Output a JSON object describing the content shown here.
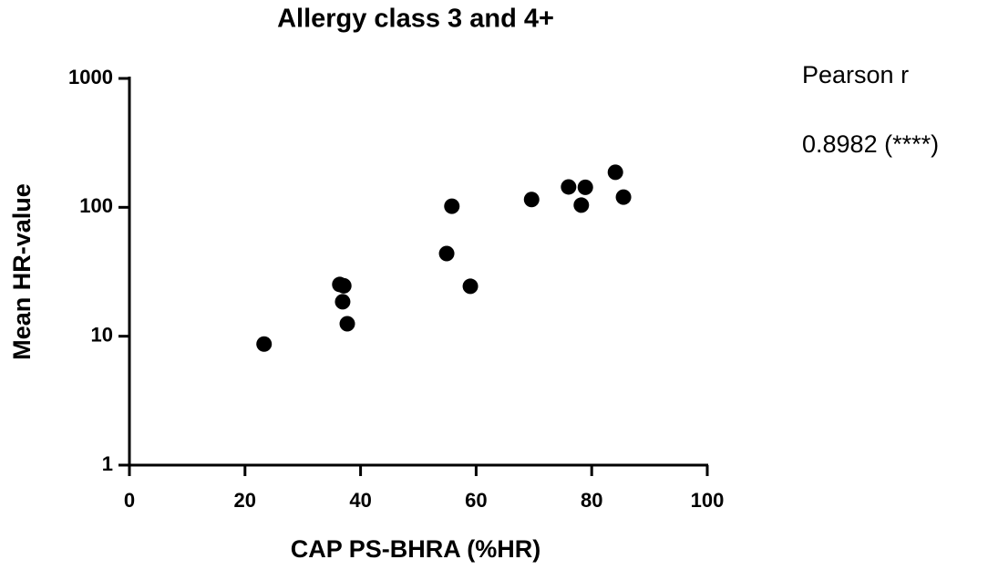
{
  "chart_data": {
    "type": "scatter",
    "title": "Allergy class 3 and 4+",
    "x_label": "CAP PS-BHRA (%HR)",
    "y_label": "Mean HR-value",
    "annotations": [
      "Pearson r",
      "0.8982 (****)"
    ],
    "color": "#000000",
    "log_y": true,
    "xlim": [
      0,
      100
    ],
    "xticks": [
      0,
      20,
      40,
      60,
      80,
      100
    ],
    "ylim": [
      1,
      1000
    ],
    "yticks": [
      1,
      10,
      100,
      1000
    ],
    "x": [
      23.3,
      36.4,
      37.1,
      36.9,
      37.7,
      54.9,
      55.8,
      59.0,
      69.6,
      76.0,
      78.9,
      78.2,
      84.1,
      85.5
    ],
    "values": [
      8.7,
      25.2,
      24.6,
      18.5,
      12.5,
      43.8,
      102,
      24.4,
      115,
      144,
      143,
      104,
      187,
      120
    ]
  }
}
